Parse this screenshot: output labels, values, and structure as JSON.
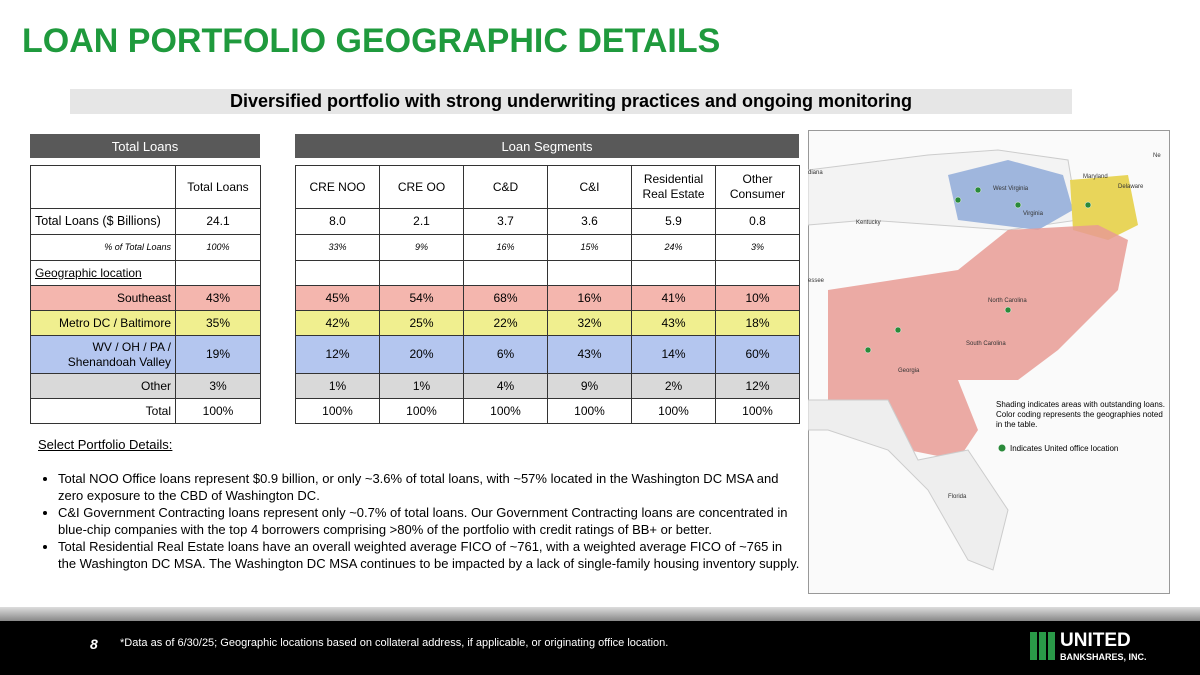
{
  "title": "LOAN PORTFOLIO GEOGRAPHIC DETAILS",
  "subtitle": "Diversified portfolio with strong underwriting practices and ongoing monitoring",
  "tables": {
    "left_header": "Total Loans",
    "right_header": "Loan Segments",
    "total_column": "Total Loans",
    "segment_columns": [
      "CRE NOO",
      "CRE OO",
      "C&D",
      "C&I",
      "Residential Real Estate",
      "Other Consumer"
    ],
    "rows": [
      {
        "label": "Total Loans ($ Billions)",
        "total": "24.1",
        "segments": [
          "8.0",
          "2.1",
          "3.7",
          "3.6",
          "5.9",
          "0.8"
        ]
      },
      {
        "label": "% of Total Loans",
        "total": "100%",
        "segments": [
          "33%",
          "9%",
          "16%",
          "15%",
          "24%",
          "3%"
        ]
      },
      {
        "label": "Geographic location"
      },
      {
        "label": "Southeast",
        "total": "43%",
        "segments": [
          "45%",
          "54%",
          "68%",
          "16%",
          "41%",
          "10%"
        ]
      },
      {
        "label": "Metro DC / Baltimore",
        "total": "35%",
        "segments": [
          "42%",
          "25%",
          "22%",
          "32%",
          "43%",
          "18%"
        ]
      },
      {
        "label": "WV / OH / PA / Shenandoah Valley",
        "total": "19%",
        "segments": [
          "12%",
          "20%",
          "6%",
          "43%",
          "14%",
          "60%"
        ]
      },
      {
        "label": "Other",
        "total": "3%",
        "segments": [
          "1%",
          "1%",
          "4%",
          "9%",
          "2%",
          "12%"
        ]
      },
      {
        "label": "Total",
        "total": "100%",
        "segments": [
          "100%",
          "100%",
          "100%",
          "100%",
          "100%",
          "100%"
        ]
      }
    ]
  },
  "details": {
    "heading": "Select Portfolio Details:",
    "bullets": [
      "Total NOO Office loans represent $0.9 billion, or only ~3.6% of total loans, with ~57% located in the Washington DC MSA and zero exposure to the CBD of Washington DC.",
      "C&I Government Contracting loans represent only ~0.7% of total loans. Our Government Contracting loans are concentrated in blue-chip companies with the top 4 borrowers comprising >80% of the portfolio with credit ratings of BB+ or better.",
      "Total Residential Real Estate loans have an overall weighted average FICO of ~761, with a weighted average FICO of ~765 in the Washington DC MSA. The Washington DC MSA continues to be impacted by a lack of single-family housing inventory supply."
    ]
  },
  "map": {
    "labels": [
      "diana",
      "West Virginia",
      "Maryland",
      "Delaware",
      "Ne",
      "Kentucky",
      "Virginia",
      "essee",
      "North Carolina",
      "South Carolina",
      "Georgia",
      "Florida"
    ],
    "note": "Shading indicates areas with outstanding loans. Color coding represents the geographies noted in the table.",
    "legend": "Indicates United office location"
  },
  "footer": {
    "page": "8",
    "note": "*Data as of 6/30/25; Geographic locations based on collateral address, if applicable, or originating office location.",
    "logo_name": "UNITED",
    "logo_sub": "BANKSHARES, INC."
  }
}
